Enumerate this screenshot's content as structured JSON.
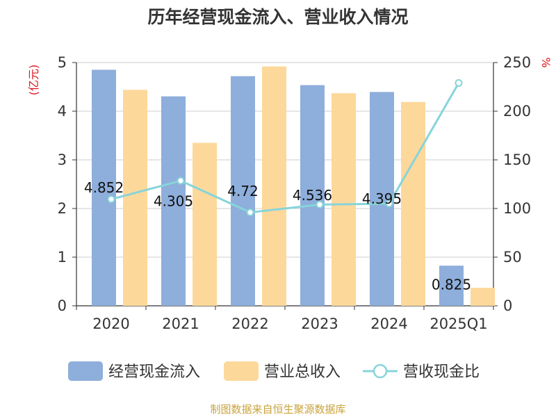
{
  "chart_data": {
    "type": "bar",
    "title": "历年经营现金流入、营业收入情况",
    "categories": [
      "2020",
      "2021",
      "2022",
      "2023",
      "2024",
      "2025Q1"
    ],
    "y_left": {
      "unit": "(亿元)",
      "range": [
        0,
        5
      ],
      "ticks": [
        "0",
        "1",
        "2",
        "3",
        "4",
        "5"
      ]
    },
    "y_right": {
      "unit": "%",
      "range": [
        0,
        250
      ],
      "ticks": [
        "0",
        "50",
        "100",
        "150",
        "200",
        "250"
      ]
    },
    "series": [
      {
        "name": "经营现金流入",
        "type": "bar",
        "axis": "left",
        "color": "#8eaedb",
        "values": [
          4.852,
          4.305,
          4.72,
          4.536,
          4.395,
          0.825
        ],
        "labels": [
          "4.852",
          "4.305",
          "4.72",
          "4.536",
          "4.395",
          "0.825"
        ]
      },
      {
        "name": "营业总收入",
        "type": "bar",
        "axis": "left",
        "color": "#fdd89b",
        "values": [
          4.44,
          3.35,
          4.92,
          4.37,
          4.19,
          0.37
        ]
      },
      {
        "name": "营收现金比",
        "type": "line",
        "axis": "right",
        "color": "#87d4d9",
        "values": [
          109.5,
          128.5,
          96.0,
          104.0,
          105.0,
          229.0
        ]
      }
    ],
    "grid": true,
    "legend_position": "bottom"
  },
  "source": "制图数据来自恒生聚源数据库"
}
